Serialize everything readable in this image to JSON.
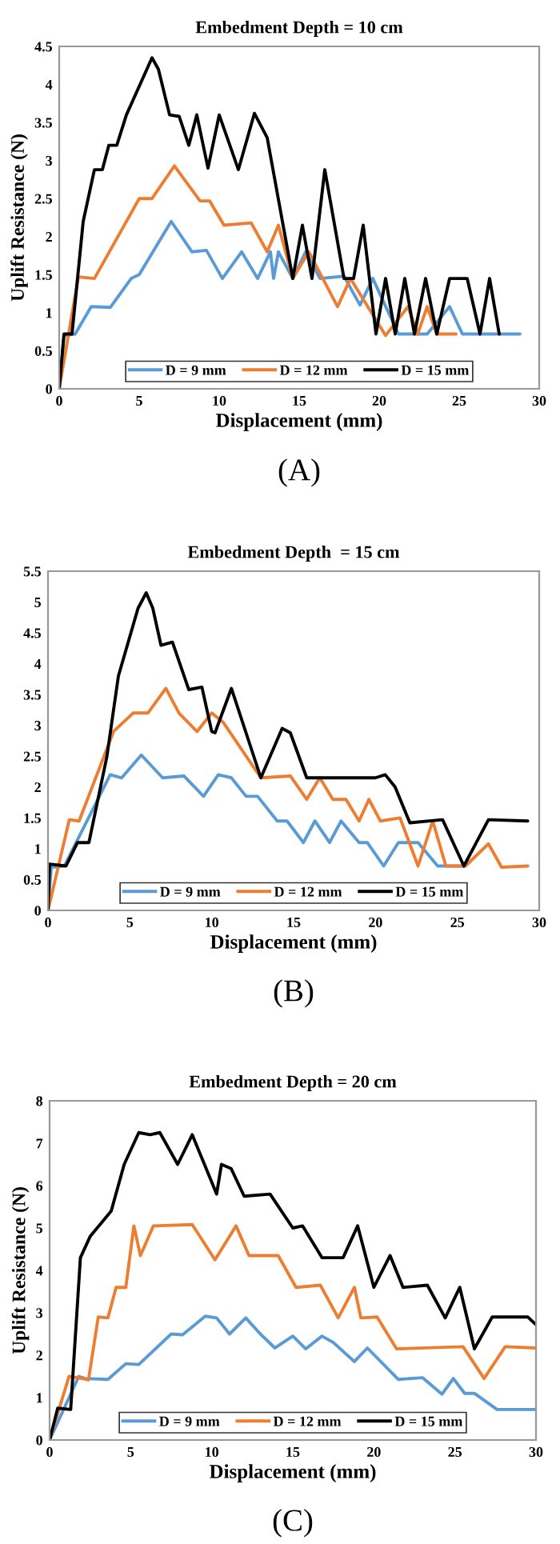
{
  "chart_data": [
    {
      "type": "line",
      "title": "Embedment Depth = 10 cm",
      "xlabel": "Displacement (mm)",
      "ylabel": "Uplift Resistance (N)",
      "annotations": [
        "(A)"
      ],
      "xlim": [
        0,
        30
      ],
      "xticks": [
        0,
        5,
        10,
        15,
        20,
        25,
        30
      ],
      "ylim": [
        0,
        4.5
      ],
      "yticks": [
        0,
        0.5,
        1,
        1.5,
        2,
        2.5,
        3,
        3.5,
        4,
        4.5
      ],
      "grid": false,
      "legend": "bottom",
      "marker": "none",
      "line_style": "solid",
      "series": [
        {
          "name": "D = 9 mm",
          "color": "#5b9bd5",
          "x": [
            0,
            0.3,
            1,
            2,
            3.2,
            4.5,
            5,
            7,
            8.3,
            9.2,
            10.2,
            11.4,
            12.4,
            13.2,
            13.4,
            13.7,
            14.6,
            15.4,
            16.3,
            17.8,
            18.8,
            19.6,
            21.2,
            23,
            24.4,
            25.2,
            28.8
          ],
          "values": [
            0,
            0.7,
            0.72,
            1.08,
            1.07,
            1.45,
            1.5,
            2.2,
            1.8,
            1.82,
            1.45,
            1.8,
            1.45,
            1.8,
            1.45,
            1.8,
            1.45,
            1.8,
            1.45,
            1.48,
            1.1,
            1.45,
            0.72,
            0.72,
            1.08,
            0.72,
            0.72
          ]
        },
        {
          "name": "D = 12 mm",
          "color": "#ed7d31",
          "x": [
            0,
            1.2,
            2.2,
            5,
            5.8,
            7.2,
            8.8,
            9.4,
            10.3,
            12,
            13,
            13.7,
            14.6,
            15.6,
            17.4,
            18.2,
            20.4,
            21.8,
            22.4,
            23,
            23.6,
            24.8
          ],
          "values": [
            0,
            1.47,
            1.45,
            2.5,
            2.5,
            2.93,
            2.47,
            2.47,
            2.15,
            2.18,
            1.8,
            2.15,
            1.45,
            1.8,
            1.08,
            1.45,
            0.7,
            1.08,
            0.72,
            1.08,
            0.72,
            0.72
          ]
        },
        {
          "name": "D = 15 mm",
          "color": "#000000",
          "x": [
            0,
            0.3,
            0.8,
            1.5,
            2.2,
            2.7,
            3.1,
            3.6,
            4.2,
            5.8,
            6.2,
            6.9,
            7.5,
            8.1,
            8.6,
            9.3,
            10,
            11.2,
            12.2,
            13,
            14.6,
            15.2,
            15.8,
            16.6,
            17.8,
            18.4,
            19,
            19.8,
            20.4,
            21,
            21.6,
            22.2,
            22.9,
            23.6,
            24.4,
            25.5,
            26.3,
            26.9,
            27.5
          ],
          "values": [
            0,
            0.72,
            0.72,
            2.2,
            2.88,
            2.88,
            3.2,
            3.2,
            3.6,
            4.35,
            4.2,
            3.6,
            3.58,
            3.2,
            3.6,
            2.9,
            3.6,
            2.88,
            3.62,
            3.3,
            1.45,
            2.15,
            1.45,
            2.88,
            1.45,
            1.45,
            2.15,
            0.72,
            1.45,
            0.72,
            1.45,
            0.72,
            1.45,
            0.72,
            1.45,
            1.45,
            0.72,
            1.45,
            0.72
          ]
        }
      ]
    },
    {
      "type": "line",
      "title": "Embedment Depth  = 15 cm",
      "xlabel": "Displacement (mm)",
      "annotations": [
        "(B)"
      ],
      "xlim": [
        0,
        30
      ],
      "xticks": [
        0,
        5,
        10,
        15,
        20,
        25,
        30
      ],
      "ylim": [
        0,
        5.5
      ],
      "yticks": [
        0,
        0.5,
        1,
        1.5,
        2,
        2.5,
        3,
        3.5,
        4,
        4.5,
        5,
        5.5
      ],
      "grid": false,
      "legend": "bottom",
      "marker": "none",
      "line_style": "solid",
      "series": [
        {
          "name": "D = 9 mm",
          "color": "#5b9bd5",
          "x": [
            0,
            0.2,
            1,
            3.8,
            4.5,
            5.7,
            7,
            8.3,
            9.5,
            10.4,
            11.2,
            12.1,
            12.8,
            14,
            14.6,
            15.6,
            16.3,
            17.2,
            17.9,
            19,
            19.5,
            20.5,
            21.4,
            22.6,
            23.8,
            25.4
          ],
          "values": [
            0,
            0.7,
            0.72,
            2.2,
            2.15,
            2.52,
            2.15,
            2.18,
            1.85,
            2.2,
            2.15,
            1.85,
            1.85,
            1.45,
            1.45,
            1.1,
            1.45,
            1.1,
            1.45,
            1.1,
            1.1,
            0.72,
            1.1,
            1.1,
            0.72,
            0.72
          ]
        },
        {
          "name": "D = 12 mm",
          "color": "#ed7d31",
          "x": [
            0,
            1.3,
            1.9,
            4,
            5.2,
            6.1,
            7.2,
            8,
            9.1,
            10,
            10.7,
            13,
            14.8,
            15.8,
            16.6,
            17.4,
            18.2,
            19,
            19.6,
            20.3,
            21.5,
            22.6,
            23.5,
            24.3,
            25.5,
            26.9,
            27.7,
            29.3
          ],
          "values": [
            0,
            1.47,
            1.45,
            2.9,
            3.2,
            3.2,
            3.6,
            3.2,
            2.9,
            3.2,
            3.05,
            2.15,
            2.18,
            1.8,
            2.15,
            1.8,
            1.8,
            1.45,
            1.8,
            1.45,
            1.5,
            0.72,
            1.45,
            0.72,
            0.72,
            1.08,
            0.7,
            0.72
          ]
        },
        {
          "name": "D = 15 mm",
          "color": "#000000",
          "x": [
            0,
            0.1,
            1.1,
            1.8,
            2.5,
            3.6,
            4.3,
            5.5,
            6,
            6.4,
            6.9,
            7.6,
            8.6,
            9.4,
            10,
            10.2,
            11.2,
            13,
            14.3,
            14.8,
            15.8,
            17,
            20,
            20.6,
            21.2,
            22.1,
            24.1,
            25.4,
            26.9,
            29.3
          ],
          "values": [
            0,
            0.75,
            0.72,
            1.1,
            1.1,
            2.5,
            3.8,
            4.9,
            5.15,
            4.9,
            4.3,
            4.35,
            3.58,
            3.62,
            2.9,
            2.88,
            3.6,
            2.15,
            2.95,
            2.88,
            2.15,
            2.15,
            2.15,
            2.2,
            2,
            1.42,
            1.47,
            0.72,
            1.47,
            1.45
          ]
        }
      ]
    },
    {
      "type": "line",
      "title": "Embedment Depth = 20 cm",
      "xlabel": "Displacement (mm)",
      "ylabel": "Uplift Resistance (N)",
      "annotations": [
        "(C)"
      ],
      "xlim": [
        0,
        30
      ],
      "xticks": [
        0,
        5,
        10,
        15,
        20,
        25,
        30
      ],
      "ylim": [
        0,
        8
      ],
      "yticks": [
        0,
        1,
        2,
        3,
        4,
        5,
        6,
        7,
        8
      ],
      "grid": false,
      "legend": "bottom",
      "marker": "none",
      "line_style": "solid",
      "series": [
        {
          "name": "D = 9 mm",
          "color": "#5b9bd5",
          "x": [
            0,
            1.8,
            2.2,
            3.6,
            4.7,
            5.5,
            7.5,
            8.2,
            9.6,
            10.3,
            11.1,
            12.1,
            13,
            13.9,
            15,
            15.8,
            16.8,
            17.5,
            18.8,
            19.6,
            21.5,
            23,
            24.2,
            24.9,
            25.6,
            26.2,
            27.6,
            30
          ],
          "values": [
            0,
            1.5,
            1.45,
            1.43,
            1.8,
            1.78,
            2.5,
            2.48,
            2.92,
            2.88,
            2.5,
            2.88,
            2.5,
            2.17,
            2.45,
            2.15,
            2.45,
            2.3,
            1.85,
            2.17,
            1.43,
            1.47,
            1.08,
            1.45,
            1.1,
            1.1,
            0.72,
            0.72
          ]
        },
        {
          "name": "D = 12 mm",
          "color": "#ed7d31",
          "x": [
            0,
            1.2,
            2,
            2.4,
            3,
            3.6,
            4.1,
            4.7,
            5.2,
            5.6,
            6.4,
            8.8,
            10.2,
            11.5,
            12.3,
            14.1,
            15.2,
            16.7,
            17.8,
            18.8,
            19.2,
            20.2,
            21.4,
            25.5,
            26.8,
            28.1,
            30
          ],
          "values": [
            0,
            1.5,
            1.45,
            1.42,
            2.9,
            2.88,
            3.6,
            3.6,
            5.05,
            4.35,
            5.05,
            5.08,
            4.25,
            5.05,
            4.35,
            4.35,
            3.6,
            3.65,
            2.88,
            3.6,
            2.88,
            2.9,
            2.15,
            2.2,
            1.45,
            2.2,
            2.17
          ]
        },
        {
          "name": "D = 15 mm",
          "color": "#000000",
          "x": [
            0,
            0.5,
            1.3,
            1.9,
            2.5,
            3.8,
            4.6,
            5.5,
            6.2,
            6.8,
            7.9,
            8.8,
            10.3,
            10.6,
            11.2,
            12,
            13.6,
            15,
            15.6,
            16.8,
            18.1,
            19,
            20,
            21,
            21.8,
            23.3,
            24.4,
            25.3,
            26.2,
            27.3,
            29.5,
            30
          ],
          "values": [
            0,
            0.75,
            0.72,
            4.3,
            4.8,
            5.4,
            6.5,
            7.25,
            7.2,
            7.25,
            6.5,
            7.2,
            5.8,
            6.5,
            6.4,
            5.75,
            5.8,
            5,
            5.05,
            4.3,
            4.3,
            5.05,
            3.6,
            4.35,
            3.6,
            3.65,
            2.88,
            3.6,
            2.15,
            2.9,
            2.9,
            2.72
          ]
        }
      ]
    }
  ]
}
